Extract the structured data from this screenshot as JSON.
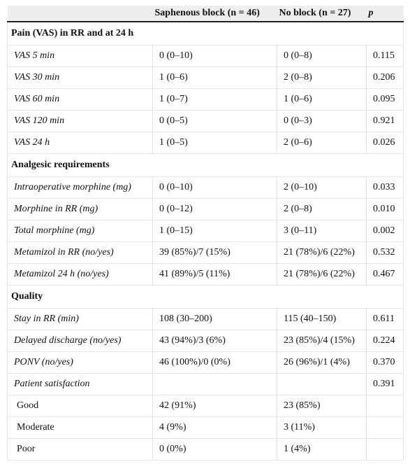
{
  "header": {
    "col1": "",
    "col2": "Saphenous block (n = 46)",
    "col3": "No block (n = 27)",
    "col4": "p"
  },
  "sections": [
    {
      "title": "Pain (VAS) in RR and at 24 h",
      "rows": [
        {
          "label": "VAS 5 min",
          "a": "0 (0–10)",
          "b": "0 (0–8)",
          "p": "0.115"
        },
        {
          "label": "VAS 30 min",
          "a": "1 (0–6)",
          "b": "2 (0–8)",
          "p": "0.206"
        },
        {
          "label": "VAS 60 min",
          "a": "1 (0–7)",
          "b": "1 (0–6)",
          "p": "0.095"
        },
        {
          "label": "VAS 120 min",
          "a": "0 (0–5)",
          "b": "0 (0–3)",
          "p": "0.921"
        },
        {
          "label": "VAS 24 h",
          "a": "1 (0–5)",
          "b": "2 (0–6)",
          "p": "0.026"
        }
      ]
    },
    {
      "title": "Analgesic requirements",
      "rows": [
        {
          "label": "Intraoperative morphine (mg)",
          "a": "0 (0–10)",
          "b": "2 (0–10)",
          "p": "0.033"
        },
        {
          "label": "Morphine in RR (mg)",
          "a": "0 (0–12)",
          "b": "2 (0–8)",
          "p": "0.010"
        },
        {
          "label": "Total morphine (mg)",
          "a": "1 (0–15)",
          "b": "3 (0–11)",
          "p": "0.002"
        },
        {
          "label": "Metamizol in RR (no/yes)",
          "a": "39 (85%)/7 (15%)",
          "b": "21 (78%)/6 (22%)",
          "p": "0.532"
        },
        {
          "label": "Metamizol 24 h (no/yes)",
          "a": "41 (89%)/5 (11%)",
          "b": "21 (78%)/6 (22%)",
          "p": "0.467"
        }
      ]
    },
    {
      "title": "Quality",
      "rows": [
        {
          "label": "Stay in RR (min)",
          "a": "108 (30–200)",
          "b": "115 (40–150)",
          "p": "0.611"
        },
        {
          "label": "Delayed discharge (no/yes)",
          "a": "43 (94%)/3 (6%)",
          "b": "23 (85%)/4 (15%)",
          "p": "0.224"
        },
        {
          "label": "PONV (no/yes)",
          "a": "46 (100%)/0 (0%)",
          "b": "26 (96%)/1 (4%)",
          "p": "0.370"
        },
        {
          "label": "Patient satisfaction",
          "a": "",
          "b": "",
          "p": "0.391"
        },
        {
          "label": "Good",
          "a": "42 (91%)",
          "b": "23 (85%)",
          "p": "",
          "sub": true
        },
        {
          "label": "Moderate",
          "a": "4 (9%)",
          "b": "3 (11%)",
          "p": "",
          "sub": true
        },
        {
          "label": "Poor",
          "a": "0 (0%)",
          "b": "1 (4%)",
          "p": "",
          "sub": true
        }
      ]
    }
  ]
}
